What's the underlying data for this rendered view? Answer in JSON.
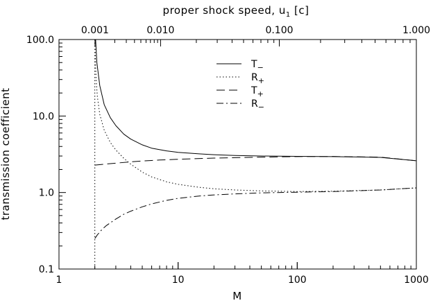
{
  "chart_data": {
    "type": "line",
    "xlabel": "M",
    "ylabel": "transmission coefficient",
    "top_axis_label": "proper shock speed,  u",
    "top_axis_label_sub": "1",
    "top_axis_label_unit": " [c]",
    "x_scale": "log",
    "y_scale": "log",
    "xlim": [
      1,
      1000
    ],
    "ylim": [
      0.1,
      100
    ],
    "x_ticks": [
      1,
      10,
      100,
      1000
    ],
    "x_tick_labels": [
      "1",
      "10",
      "100",
      "1000"
    ],
    "y_ticks": [
      0.1,
      1,
      10,
      100
    ],
    "y_tick_labels": [
      "0.1",
      "1.0",
      "10.0",
      "100.0"
    ],
    "top_ticks_M": [
      2.007,
      7.127,
      70.72,
      1000
    ],
    "top_tick_labels": [
      "0.001",
      "0.010",
      "0.100",
      "1.000"
    ],
    "threshold_line_x": 2,
    "legend_position": "top-center",
    "series": [
      {
        "name": "T",
        "name_sub": "−",
        "dash": "",
        "x": [
          2.03,
          2.08,
          2.2,
          2.4,
          2.7,
          3,
          3.5,
          4,
          5,
          6,
          8,
          10,
          15,
          20,
          30,
          50,
          100,
          200,
          500,
          1000
        ],
        "y": [
          100,
          50,
          25,
          14,
          9.5,
          7.5,
          5.8,
          5.0,
          4.2,
          3.8,
          3.5,
          3.35,
          3.2,
          3.12,
          3.05,
          3.0,
          2.97,
          2.95,
          2.88,
          2.6
        ]
      },
      {
        "name": "R",
        "name_sub": "+",
        "dash": "1.5,3",
        "x": [
          2.005,
          2.02,
          2.05,
          2.1,
          2.2,
          2.4,
          2.7,
          3,
          3.5,
          4,
          5,
          6,
          8,
          10,
          15,
          20,
          30,
          50,
          100,
          200,
          500,
          1000
        ],
        "y": [
          100,
          60,
          30,
          18,
          10.5,
          6.5,
          4.5,
          3.6,
          2.8,
          2.35,
          1.85,
          1.6,
          1.38,
          1.28,
          1.17,
          1.12,
          1.08,
          1.05,
          1.03,
          1.04,
          1.08,
          1.15
        ]
      },
      {
        "name": "T",
        "name_sub": "+",
        "dash": "12,6",
        "x": [
          2.0,
          2.5,
          3,
          4,
          5,
          7,
          10,
          20,
          50,
          100,
          200,
          500,
          1000
        ],
        "y": [
          2.28,
          2.36,
          2.42,
          2.52,
          2.58,
          2.66,
          2.72,
          2.82,
          2.9,
          2.95,
          2.96,
          2.9,
          2.6
        ]
      },
      {
        "name": "R",
        "name_sub": "−",
        "dash": "10,4,2,4",
        "x": [
          2.0,
          2.1,
          2.3,
          2.5,
          3,
          3.5,
          4,
          5,
          6,
          8,
          10,
          15,
          20,
          30,
          50,
          100,
          200,
          500,
          1000
        ],
        "y": [
          0.25,
          0.28,
          0.33,
          0.37,
          0.45,
          0.52,
          0.57,
          0.65,
          0.71,
          0.79,
          0.84,
          0.9,
          0.93,
          0.96,
          0.99,
          1.01,
          1.03,
          1.08,
          1.15
        ]
      }
    ]
  }
}
